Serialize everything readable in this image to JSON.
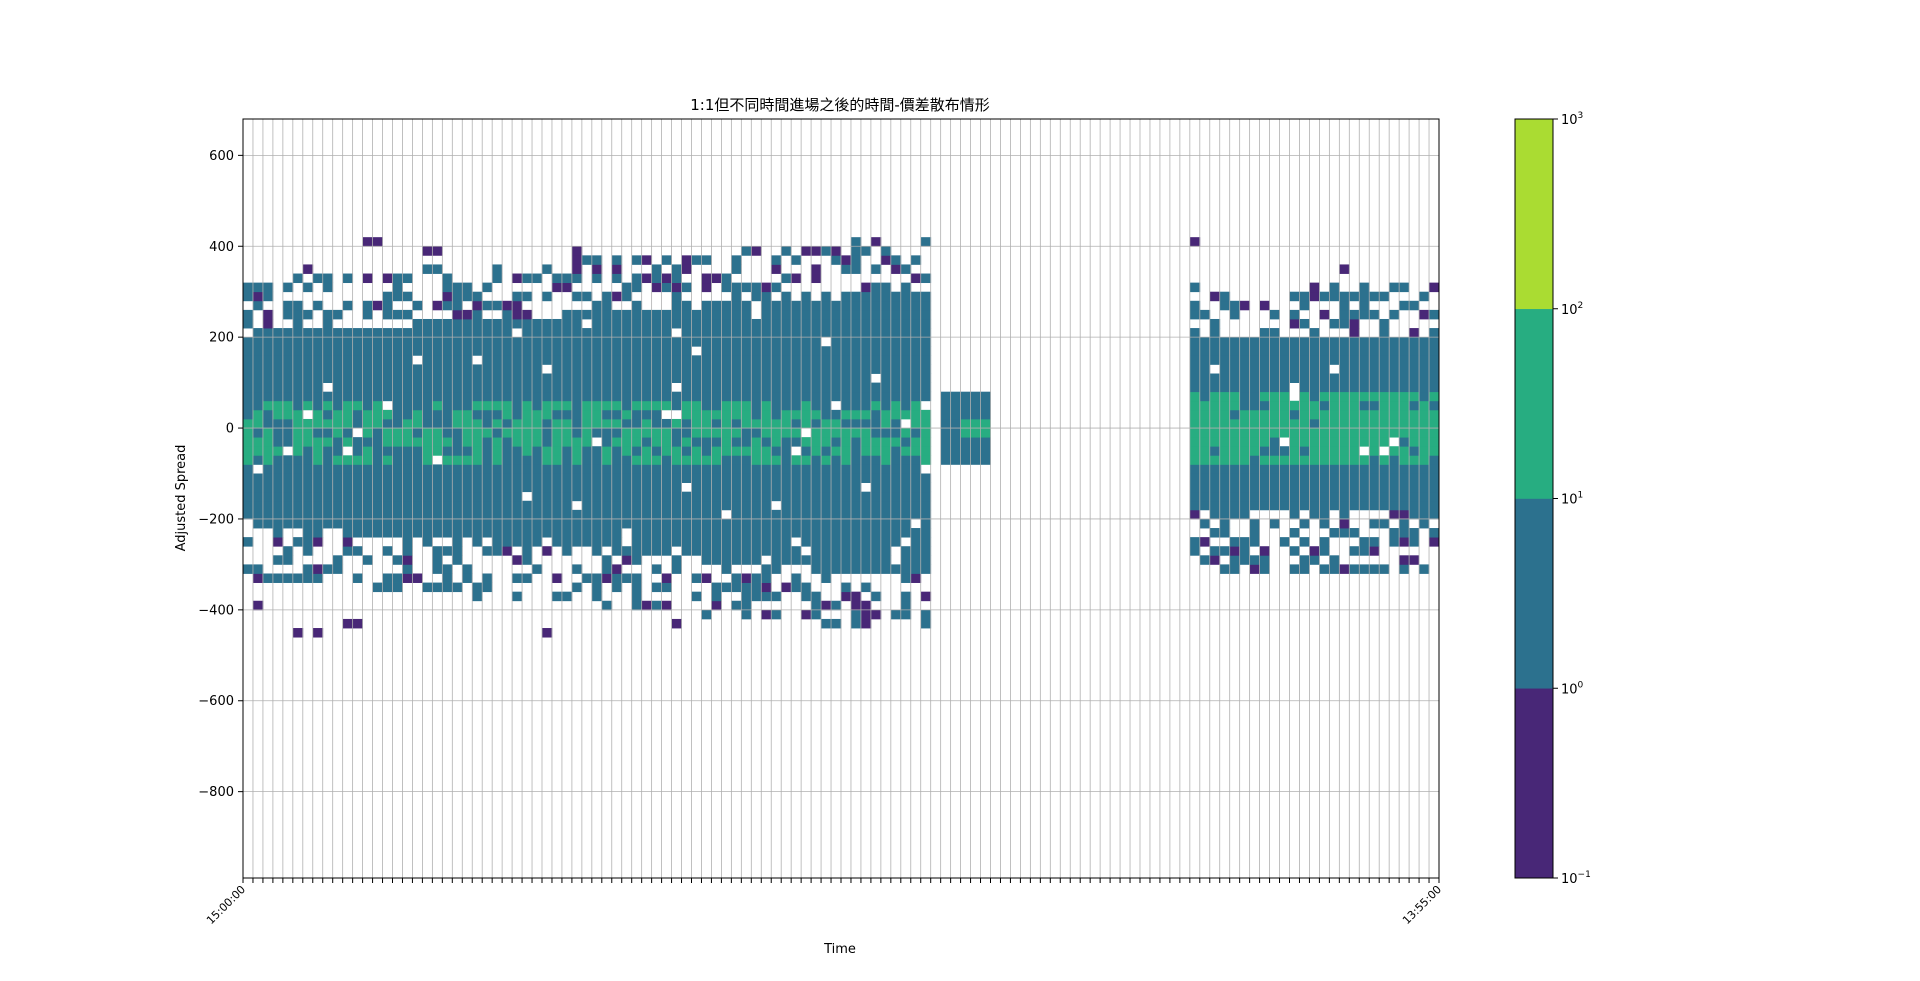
{
  "chart_data": {
    "type": "heatmap",
    "title": "1:1但不同時間進場之後的時間-價差散布情形",
    "xlabel": "Time",
    "ylabel": "Adjusted Spread",
    "ylim": [
      -990,
      680
    ],
    "yticks": [
      600,
      400,
      200,
      0,
      -200,
      -400,
      -600,
      -800
    ],
    "ytick_labels": [
      "600",
      "400",
      "200",
      "0",
      "−200",
      "−400",
      "−600",
      "−800"
    ],
    "n_time_bins": 120,
    "x_first_label": "15:00:00",
    "x_last_label": "13:55:00",
    "grid": true,
    "colorbar": {
      "scale": "log",
      "levels": [
        "10^-1",
        "10^0",
        "10^1",
        "10^2",
        "10^3"
      ],
      "tick_labels": [
        {
          "base": "10",
          "exp": "3"
        },
        {
          "base": "10",
          "exp": "2"
        },
        {
          "base": "10",
          "exp": "1"
        },
        {
          "base": "10",
          "exp": "0"
        },
        {
          "base": "10",
          "exp": "−1"
        }
      ],
      "band_colors": [
        "#482777",
        "#2c718e",
        "#27ad81",
        "#aadc32"
      ]
    },
    "regions": [
      {
        "name": "day-session-block",
        "time_range": [
          "15:00:00",
          "~04:30"
        ],
        "dense_spread": [
          -220,
          210
        ],
        "sparse_spread": [
          -430,
          400
        ],
        "core_spread": [
          -80,
          60
        ],
        "core_level": "10^1-10^2"
      },
      {
        "name": "early-morning-block",
        "time_range": [
          "~04:40",
          "~05:00"
        ],
        "dense_spread": [
          -80,
          90
        ],
        "core_spread": [
          -20,
          30
        ],
        "core_level": "10^1-10^2"
      },
      {
        "name": "morning-block",
        "time_range": [
          "~08:45",
          "13:55:00"
        ],
        "dense_spread": [
          -200,
          200
        ],
        "sparse_spread": [
          -310,
          410
        ],
        "core_spread": [
          -90,
          80
        ],
        "core_level": "10^1-10^2"
      }
    ]
  }
}
